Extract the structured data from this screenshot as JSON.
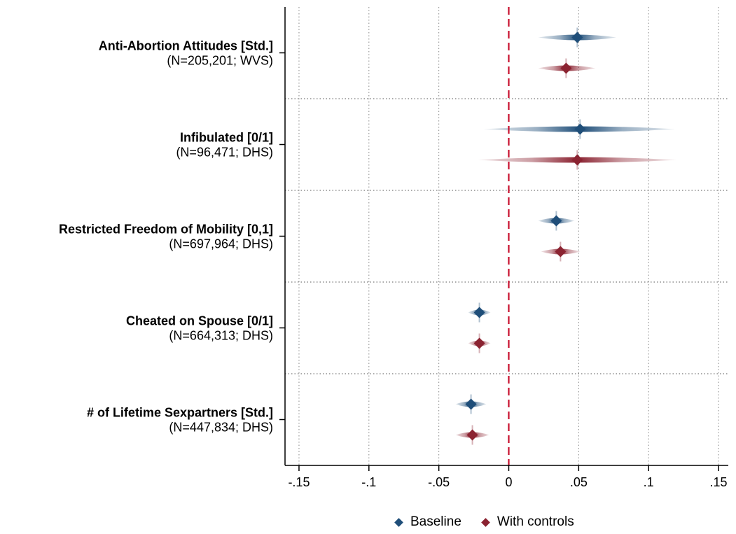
{
  "chart_data": {
    "type": "scatter",
    "subtype": "coefficient-plot",
    "title": "",
    "xlabel": "",
    "ylabel": "",
    "xlim": [
      -0.16,
      0.157
    ],
    "xticks": [
      -0.15,
      -0.1,
      -0.05,
      0,
      0.05,
      0.1,
      0.15
    ],
    "xtick_labels": [
      "-.15",
      "-.1",
      "-.05",
      "0",
      ".05",
      ".1",
      ".15"
    ],
    "reference_line": {
      "x": 0,
      "style": "dashed",
      "color": "#c8102e"
    },
    "grid": true,
    "legend_position": "bottom",
    "categories": [
      {
        "title": "Anti-Abortion Attitudes [Std.]",
        "subtitle": "(N=205,201; WVS)"
      },
      {
        "title": "Infibulated [0/1]",
        "subtitle": "(N=96,471; DHS)"
      },
      {
        "title": "Restricted Freedom of Mobility [0,1]",
        "subtitle": "(N=697,964; DHS)"
      },
      {
        "title": "Cheated on Spouse [0/1]",
        "subtitle": "(N=664,313; DHS)"
      },
      {
        "title": "# of Lifetime Sexpartners [Std.]",
        "subtitle": "(N=447,834; DHS)"
      }
    ],
    "series": [
      {
        "name": "Baseline",
        "color": "#1f4e79",
        "estimates": [
          0.049,
          0.051,
          0.034,
          -0.021,
          -0.027
        ],
        "ci_low": [
          0.021,
          -0.018,
          0.021,
          -0.029,
          -0.038
        ],
        "ci_high": [
          0.077,
          0.119,
          0.047,
          -0.013,
          -0.016
        ]
      },
      {
        "name": "With controls",
        "color": "#8b2331",
        "estimates": [
          0.041,
          0.049,
          0.037,
          -0.021,
          -0.026
        ],
        "ci_low": [
          0.021,
          -0.022,
          0.023,
          -0.029,
          -0.038
        ],
        "ci_high": [
          0.062,
          0.12,
          0.051,
          -0.013,
          -0.014
        ]
      }
    ]
  }
}
